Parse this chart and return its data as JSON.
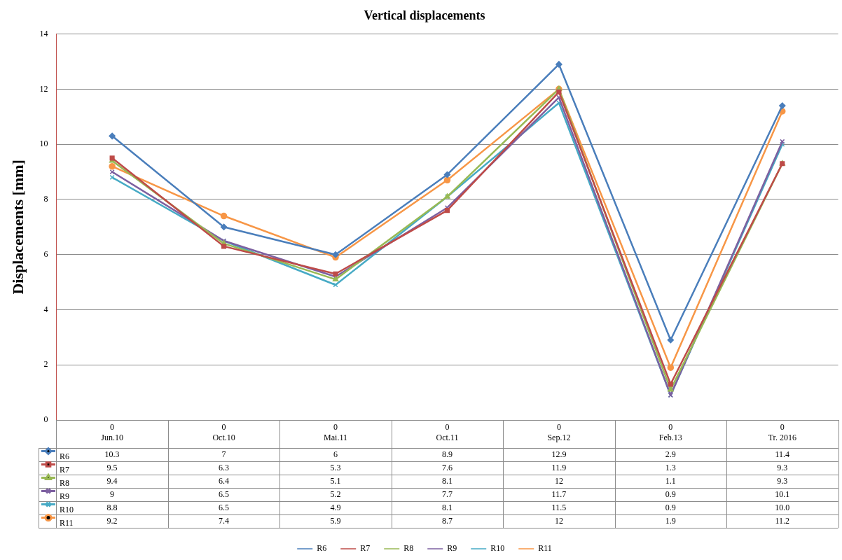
{
  "chart_data": {
    "type": "line",
    "title": "Vertical displacements",
    "ylabel": "Displacements [mm]",
    "categories": [
      "0\nJun.10",
      "0\nOct.10",
      "0\nMai.11",
      "0\nOct.11",
      "0\nSep.12",
      "0\nFeb.13",
      "0\nTr. 2016"
    ],
    "series": [
      {
        "name": "R6",
        "color": "#4a7ebb",
        "marker": "diamond",
        "values": [
          10.3,
          7,
          6,
          8.9,
          12.9,
          2.9,
          11.4
        ],
        "value_labels": [
          "10.3",
          "7",
          "6",
          "8.9",
          "12.9",
          "2.9",
          "11.4"
        ]
      },
      {
        "name": "R7",
        "color": "#be4b48",
        "marker": "square",
        "values": [
          9.5,
          6.3,
          5.3,
          7.6,
          11.9,
          1.3,
          9.3
        ],
        "value_labels": [
          "9.5",
          "6.3",
          "5.3",
          "7.6",
          "11.9",
          "1.3",
          "9.3"
        ]
      },
      {
        "name": "R8",
        "color": "#98b954",
        "marker": "triangle",
        "values": [
          9.4,
          6.4,
          5.1,
          8.1,
          12,
          1.1,
          9.3
        ],
        "value_labels": [
          "9.4",
          "6.4",
          "5.1",
          "8.1",
          "12",
          "1.1",
          "9.3"
        ]
      },
      {
        "name": "R9",
        "color": "#7d60a0",
        "marker": "cross",
        "values": [
          9,
          6.5,
          5.2,
          7.7,
          11.7,
          0.9,
          10.1
        ],
        "value_labels": [
          "9",
          "6.5",
          "5.2",
          "7.7",
          "11.7",
          "0.9",
          "10.1"
        ]
      },
      {
        "name": "R10",
        "color": "#46aac5",
        "marker": "cross",
        "values": [
          8.8,
          6.5,
          4.9,
          8.1,
          11.5,
          0.9,
          10.0
        ],
        "value_labels": [
          "8.8",
          "6.5",
          "4.9",
          "8.1",
          "11.5",
          "0.9",
          "10.0"
        ]
      },
      {
        "name": "R11",
        "color": "#f79646",
        "marker": "circle",
        "values": [
          9.2,
          7.4,
          5.9,
          8.7,
          12,
          1.9,
          11.2
        ],
        "value_labels": [
          "9.2",
          "7.4",
          "5.9",
          "8.7",
          "12",
          "1.9",
          "11.2"
        ]
      }
    ],
    "ylim": [
      0,
      14
    ],
    "yticks": [
      0,
      2,
      4,
      6,
      8,
      10,
      12,
      14
    ],
    "grid": "y",
    "legend": "bottom",
    "line_style": "solid"
  }
}
